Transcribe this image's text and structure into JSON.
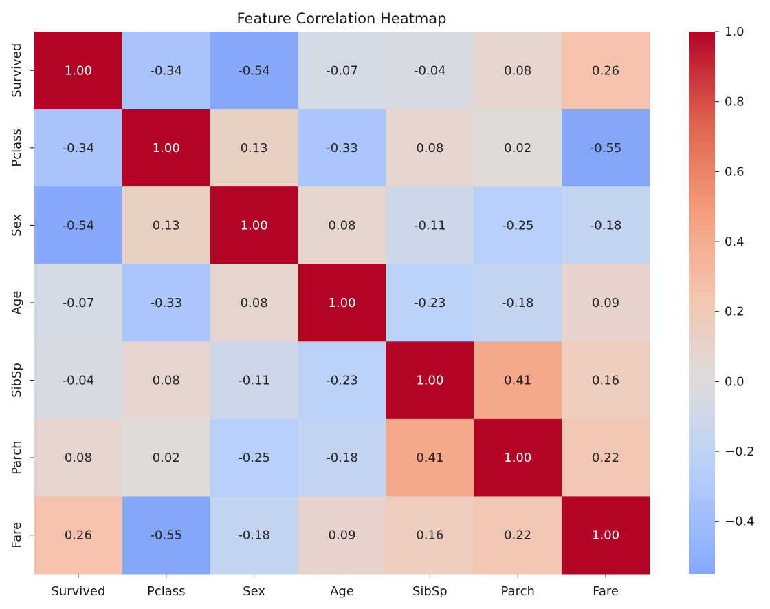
{
  "chart_data": {
    "type": "heatmap",
    "title": "Feature Correlation Heatmap",
    "xlabel": "",
    "ylabel": "",
    "x_categories": [
      "Survived",
      "Pclass",
      "Sex",
      "Age",
      "SibSp",
      "Parch",
      "Fare"
    ],
    "y_categories": [
      "Survived",
      "Pclass",
      "Sex",
      "Age",
      "SibSp",
      "Parch",
      "Fare"
    ],
    "values": [
      [
        1.0,
        -0.34,
        -0.54,
        -0.07,
        -0.04,
        0.08,
        0.26
      ],
      [
        -0.34,
        1.0,
        0.13,
        -0.33,
        0.08,
        0.02,
        -0.55
      ],
      [
        -0.54,
        0.13,
        1.0,
        0.08,
        -0.11,
        -0.25,
        -0.18
      ],
      [
        -0.07,
        -0.33,
        0.08,
        1.0,
        -0.23,
        -0.18,
        0.09
      ],
      [
        -0.04,
        0.08,
        -0.11,
        -0.23,
        1.0,
        0.41,
        0.16
      ],
      [
        0.08,
        0.02,
        -0.25,
        -0.18,
        0.41,
        1.0,
        0.22
      ],
      [
        0.26,
        -0.55,
        -0.18,
        0.09,
        0.16,
        0.22,
        1.0
      ]
    ],
    "value_format": "0.00",
    "colormap": "coolwarm",
    "center": 0,
    "colorbar": {
      "range": [
        -0.55,
        1.0
      ],
      "ticks": [
        -0.4,
        -0.2,
        0.0,
        0.2,
        0.4,
        0.6,
        0.8,
        1.0
      ],
      "tick_labels": [
        "−0.4",
        "−0.2",
        "0.0",
        "0.2",
        "0.4",
        "0.6",
        "0.8",
        "1.0"
      ]
    },
    "grid": false,
    "legend": "colorbar-right"
  }
}
